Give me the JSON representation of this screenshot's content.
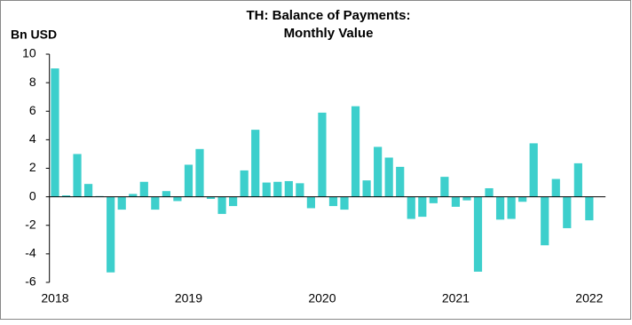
{
  "chart_data": {
    "type": "bar",
    "title": [
      "TH: Balance of Payments:",
      "Monthly Value"
    ],
    "ylabel": "Bn USD",
    "categories": [
      "2018",
      null,
      null,
      null,
      null,
      null,
      null,
      null,
      null,
      null,
      null,
      null,
      "2019",
      null,
      null,
      null,
      null,
      null,
      null,
      null,
      null,
      null,
      null,
      null,
      "2020",
      null,
      null,
      null,
      null,
      null,
      null,
      null,
      null,
      null,
      null,
      null,
      "2021",
      null,
      null,
      null,
      null,
      null,
      null,
      null,
      null,
      null,
      null,
      null,
      "2022"
    ],
    "values": [
      9.0,
      0.1,
      3.0,
      0.9,
      0.05,
      -5.3,
      -0.9,
      0.2,
      1.05,
      -0.9,
      0.4,
      -0.3,
      2.25,
      3.35,
      -0.15,
      -1.2,
      -0.65,
      1.85,
      4.7,
      1.0,
      1.05,
      1.1,
      0.95,
      -0.8,
      5.9,
      -0.65,
      -0.9,
      6.35,
      1.15,
      3.5,
      2.75,
      2.1,
      -1.55,
      -1.4,
      -0.45,
      1.4,
      -0.7,
      -0.25,
      -5.25,
      0.6,
      -1.6,
      -1.55,
      -0.35,
      3.75,
      -3.4,
      1.25,
      -2.2,
      2.35,
      -1.65
    ],
    "color": "#3dcfcc",
    "ylim": [
      -6,
      10
    ],
    "yticks": [
      -6,
      -4,
      -2,
      0,
      2,
      4,
      6,
      8,
      10
    ],
    "grid": false
  }
}
